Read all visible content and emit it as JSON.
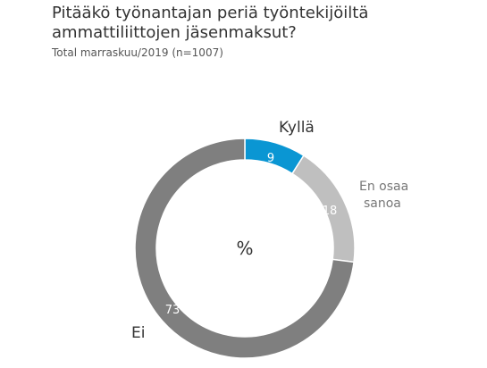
{
  "chart_data": {
    "type": "pie",
    "title": "Pitääkö työnantajan periä työntekijöiltä ammattiliittojen jäsenmaksut?",
    "subtitle": "Total marraskuu/2019 (n=1007)",
    "center_label": "%",
    "slices": [
      {
        "label": "Kyllä",
        "value": 9,
        "color": "#0a96d3"
      },
      {
        "label": "En osaa sanoa",
        "value": 18,
        "color": "#bfbfbf"
      },
      {
        "label": "Ei",
        "value": 73,
        "color": "#7f7f7f"
      }
    ]
  }
}
